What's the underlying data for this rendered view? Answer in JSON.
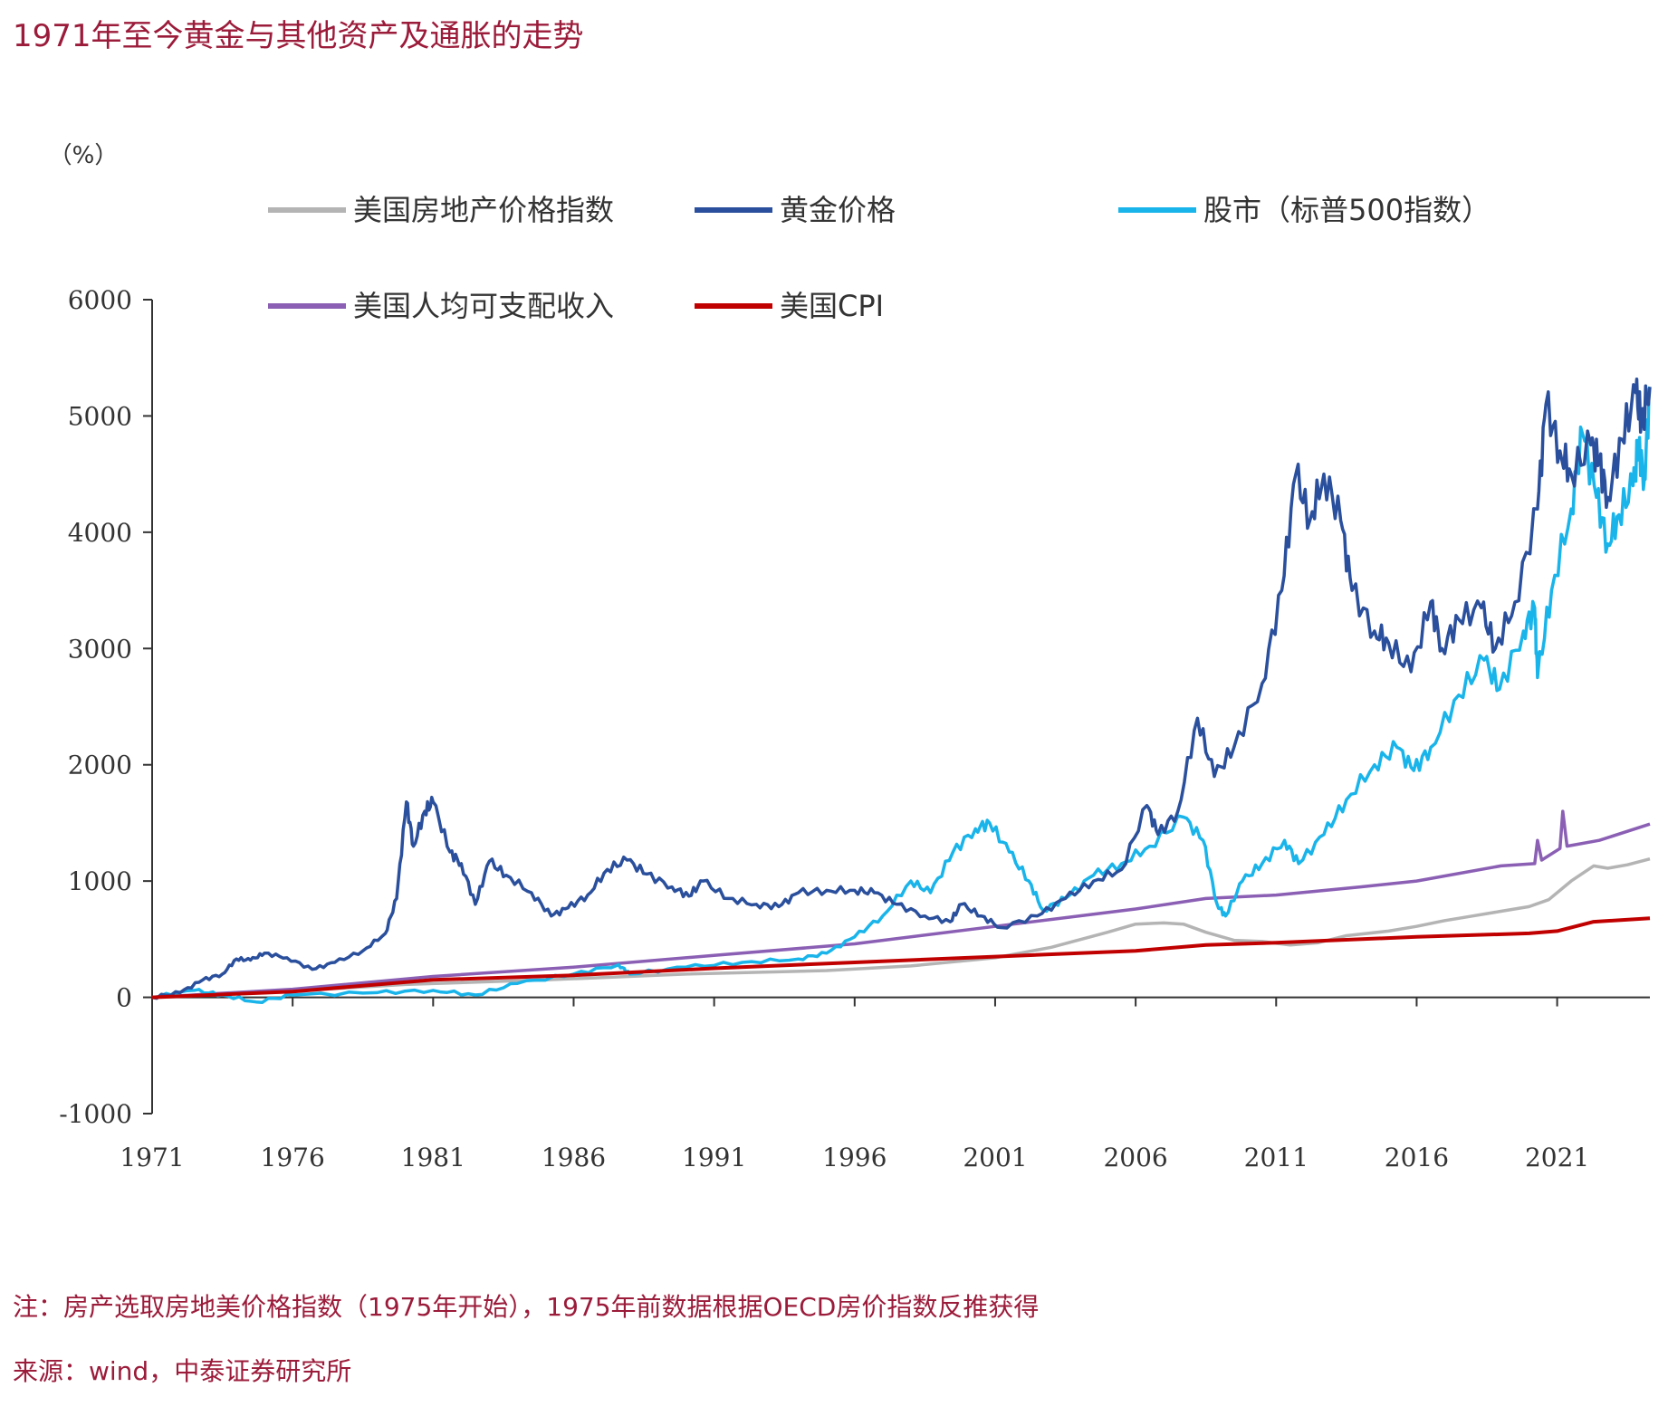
{
  "header": {
    "title": "1971年至今黄金与其他资产及通胀的走势"
  },
  "notes": {
    "note": "注：房产选取房地美价格指数（1975年开始），1975年前数据根据OECD房价指数反推获得",
    "source": "来源：wind，中泰证券研究所"
  },
  "chart_data": {
    "type": "line",
    "title": "1971年至今黄金与其他资产及通胀的走势",
    "ylabel": "（%）",
    "xlabel": "",
    "xlim": [
      1971,
      2024.3
    ],
    "ylim": [
      -1000,
      6000
    ],
    "x_ticks": [
      "1971",
      "1976",
      "1981",
      "1986",
      "1991",
      "1996",
      "2001",
      "2006",
      "2011",
      "2016",
      "2021"
    ],
    "y_ticks": [
      "-1000",
      "0",
      "1000",
      "2000",
      "3000",
      "4000",
      "5000",
      "6000"
    ],
    "grid": false,
    "legend_placement": "top",
    "series": [
      {
        "name": "美国房地产价格指数",
        "color": "#b4b4b4",
        "points": [
          [
            1971,
            0
          ],
          [
            1975,
            40
          ],
          [
            1980,
            110
          ],
          [
            1985,
            150
          ],
          [
            1990,
            200
          ],
          [
            1995,
            230
          ],
          [
            1998,
            270
          ],
          [
            2001,
            340
          ],
          [
            2003,
            430
          ],
          [
            2005,
            560
          ],
          [
            2006,
            630
          ],
          [
            2007,
            640
          ],
          [
            2007.7,
            630
          ],
          [
            2008.5,
            560
          ],
          [
            2009.5,
            490
          ],
          [
            2010.5,
            480
          ],
          [
            2011.5,
            450
          ],
          [
            2012.5,
            470
          ],
          [
            2013.5,
            530
          ],
          [
            2015,
            570
          ],
          [
            2016,
            610
          ],
          [
            2017,
            660
          ],
          [
            2018,
            700
          ],
          [
            2019,
            740
          ],
          [
            2020,
            780
          ],
          [
            2020.7,
            840
          ],
          [
            2021.5,
            1000
          ],
          [
            2022.3,
            1130
          ],
          [
            2022.8,
            1110
          ],
          [
            2023.5,
            1140
          ],
          [
            2024.3,
            1190
          ]
        ]
      },
      {
        "name": "黄金价格",
        "color": "#2a4f9c",
        "points": [
          [
            1971,
            0
          ],
          [
            1972,
            40
          ],
          [
            1972.8,
            150
          ],
          [
            1973.5,
            200
          ],
          [
            1974,
            330
          ],
          [
            1974.5,
            320
          ],
          [
            1975,
            380
          ],
          [
            1975.8,
            340
          ],
          [
            1976.7,
            240
          ],
          [
            1977.5,
            300
          ],
          [
            1978.5,
            400
          ],
          [
            1979.3,
            550
          ],
          [
            1979.7,
            850
          ],
          [
            1980.05,
            1680
          ],
          [
            1980.3,
            1300
          ],
          [
            1980.7,
            1600
          ],
          [
            1981,
            1680
          ],
          [
            1981.6,
            1250
          ],
          [
            1982,
            1150
          ],
          [
            1982.5,
            800
          ],
          [
            1983,
            1170
          ],
          [
            1983.6,
            1050
          ],
          [
            1984.5,
            900
          ],
          [
            1985.2,
            700
          ],
          [
            1985.8,
            770
          ],
          [
            1986.5,
            880
          ],
          [
            1987.2,
            1100
          ],
          [
            1987.9,
            1180
          ],
          [
            1988.6,
            1060
          ],
          [
            1989.5,
            950
          ],
          [
            1990.1,
            870
          ],
          [
            1990.6,
            1000
          ],
          [
            1991.5,
            850
          ],
          [
            1992.5,
            800
          ],
          [
            1993.3,
            780
          ],
          [
            1994,
            900
          ],
          [
            1995,
            920
          ],
          [
            1996,
            920
          ],
          [
            1996.7,
            900
          ],
          [
            1997.5,
            800
          ],
          [
            1998.5,
            700
          ],
          [
            1999.4,
            650
          ],
          [
            1999.8,
            800
          ],
          [
            2000.5,
            700
          ],
          [
            2001.2,
            600
          ],
          [
            2002.5,
            700
          ],
          [
            2003.5,
            850
          ],
          [
            2004.5,
            1000
          ],
          [
            2005.5,
            1100
          ],
          [
            2006.4,
            1650
          ],
          [
            2006.8,
            1400
          ],
          [
            2007.5,
            1600
          ],
          [
            2008.2,
            2400
          ],
          [
            2008.8,
            1900
          ],
          [
            2009.5,
            2150
          ],
          [
            2010.5,
            2700
          ],
          [
            2011.2,
            3500
          ],
          [
            2011.7,
            4500
          ],
          [
            2012.2,
            4100
          ],
          [
            2012.7,
            4500
          ],
          [
            2013.3,
            4100
          ],
          [
            2013.7,
            3500
          ],
          [
            2014.5,
            3150
          ],
          [
            2015,
            3050
          ],
          [
            2015.8,
            2800
          ],
          [
            2016.5,
            3400
          ],
          [
            2016.9,
            3000
          ],
          [
            2017.5,
            3250
          ],
          [
            2018.3,
            3350
          ],
          [
            2018.8,
            3000
          ],
          [
            2019.5,
            3400
          ],
          [
            2020.3,
            4200
          ],
          [
            2020.6,
            5100
          ],
          [
            2021.1,
            4700
          ],
          [
            2021.5,
            4500
          ],
          [
            2022.2,
            4750
          ],
          [
            2022.5,
            4600
          ],
          [
            2022.8,
            4300
          ],
          [
            2023.3,
            4800
          ],
          [
            2023.8,
            5200
          ],
          [
            2024,
            4950
          ],
          [
            2024.3,
            5250
          ]
        ]
      },
      {
        "name": "股市（标普500指数）",
        "color": "#19b4ea",
        "points": [
          [
            1971,
            0
          ],
          [
            1972.5,
            60
          ],
          [
            1973.5,
            20
          ],
          [
            1974.7,
            -40
          ],
          [
            1976,
            20
          ],
          [
            1979,
            40
          ],
          [
            1981,
            60
          ],
          [
            1982.5,
            20
          ],
          [
            1984,
            120
          ],
          [
            1986,
            200
          ],
          [
            1987.6,
            280
          ],
          [
            1988,
            200
          ],
          [
            1990,
            260
          ],
          [
            1992,
            300
          ],
          [
            1994,
            330
          ],
          [
            1995,
            380
          ],
          [
            1996,
            520
          ],
          [
            1997,
            700
          ],
          [
            1998,
            1000
          ],
          [
            1998.7,
            900
          ],
          [
            1999.5,
            1250
          ],
          [
            2000.3,
            1450
          ],
          [
            2000.8,
            1500
          ],
          [
            2001.5,
            1250
          ],
          [
            2002.2,
            1000
          ],
          [
            2002.7,
            750
          ],
          [
            2003.5,
            850
          ],
          [
            2004.5,
            1050
          ],
          [
            2005.5,
            1150
          ],
          [
            2006.5,
            1300
          ],
          [
            2007.7,
            1550
          ],
          [
            2008.4,
            1350
          ],
          [
            2008.9,
            800
          ],
          [
            2009.2,
            700
          ],
          [
            2009.8,
            1000
          ],
          [
            2010.5,
            1150
          ],
          [
            2011.3,
            1350
          ],
          [
            2011.8,
            1150
          ],
          [
            2012.7,
            1400
          ],
          [
            2013.5,
            1700
          ],
          [
            2014.5,
            2000
          ],
          [
            2015.3,
            2150
          ],
          [
            2015.9,
            1950
          ],
          [
            2016.5,
            2150
          ],
          [
            2017.5,
            2600
          ],
          [
            2018.4,
            2900
          ],
          [
            2018.95,
            2650
          ],
          [
            2019.8,
            3150
          ],
          [
            2020.2,
            3350
          ],
          [
            2020.3,
            2750
          ],
          [
            2020.8,
            3500
          ],
          [
            2021.5,
            4200
          ],
          [
            2021.9,
            4850
          ],
          [
            2022.4,
            4300
          ],
          [
            2022.8,
            3900
          ],
          [
            2023.2,
            4150
          ],
          [
            2023.7,
            4400
          ],
          [
            2023.9,
            4750
          ],
          [
            2024.1,
            4450
          ],
          [
            2024.3,
            5250
          ]
        ]
      },
      {
        "name": "美国人均可支配收入",
        "color": "#8a5fb4",
        "points": [
          [
            1971,
            0
          ],
          [
            1976,
            70
          ],
          [
            1981,
            180
          ],
          [
            1986,
            260
          ],
          [
            1991,
            360
          ],
          [
            1996,
            460
          ],
          [
            2001,
            610
          ],
          [
            2006,
            760
          ],
          [
            2008.5,
            850
          ],
          [
            2011,
            880
          ],
          [
            2014,
            950
          ],
          [
            2016,
            1000
          ],
          [
            2019,
            1130
          ],
          [
            2020.2,
            1150
          ],
          [
            2020.3,
            1350
          ],
          [
            2020.45,
            1180
          ],
          [
            2021.1,
            1280
          ],
          [
            2021.2,
            1600
          ],
          [
            2021.35,
            1300
          ],
          [
            2022.5,
            1350
          ],
          [
            2024.3,
            1490
          ]
        ]
      },
      {
        "name": "美国CPI",
        "color": "#c00000",
        "points": [
          [
            1971,
            0
          ],
          [
            1976,
            50
          ],
          [
            1981,
            150
          ],
          [
            1986,
            190
          ],
          [
            1991,
            250
          ],
          [
            1996,
            300
          ],
          [
            2001,
            350
          ],
          [
            2006,
            400
          ],
          [
            2008.5,
            450
          ],
          [
            2011,
            470
          ],
          [
            2016,
            520
          ],
          [
            2020,
            550
          ],
          [
            2021,
            570
          ],
          [
            2022.3,
            650
          ],
          [
            2024.3,
            680
          ]
        ]
      }
    ]
  }
}
